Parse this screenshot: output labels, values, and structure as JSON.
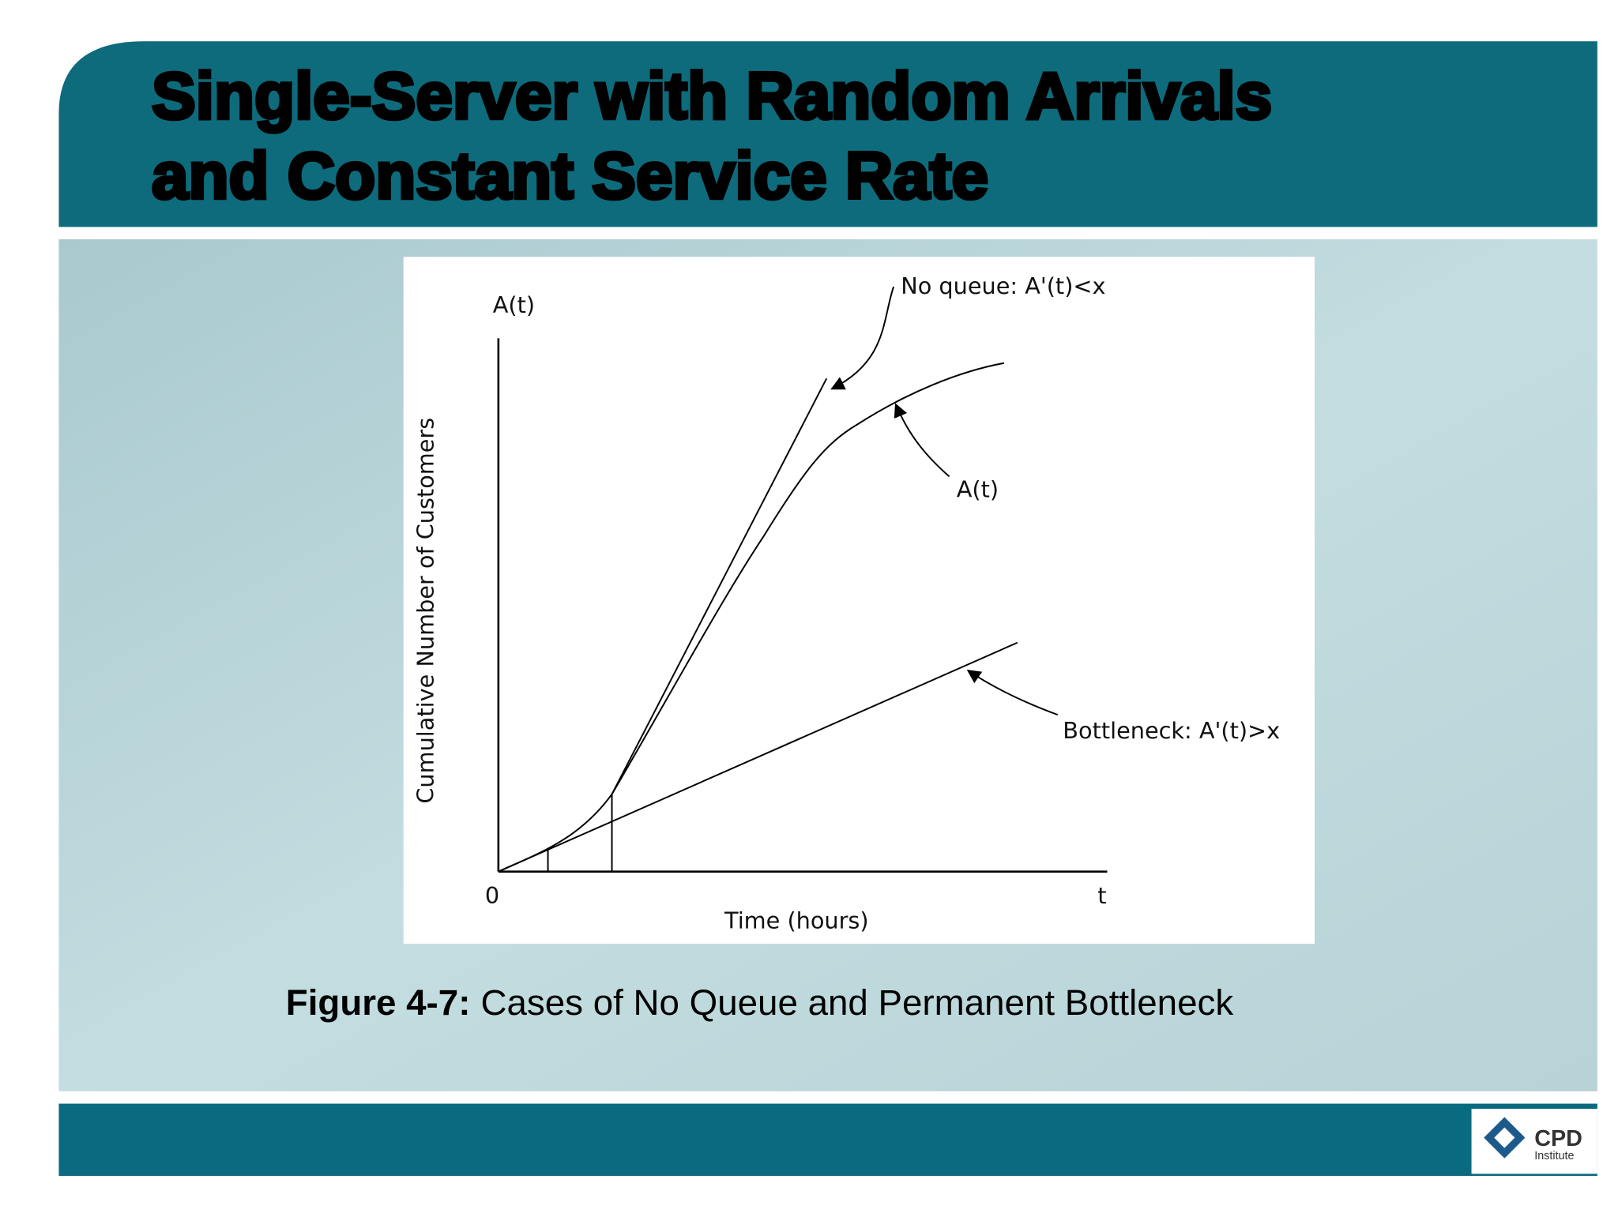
{
  "header": {
    "title_lines": [
      "Single-Server with Random Arrivals",
      "and Constant Service Rate"
    ]
  },
  "figure": {
    "y_axis_top_label": "A(t)",
    "y_axis_title": "Cumulative Number of Customers",
    "x_axis_title": "Time (hours)",
    "origin_label": "0",
    "x_axis_end_label": "t",
    "annotations": [
      "No queue: A'(t)<x",
      "A(t)",
      "Bottleneck: A'(t)>x"
    ]
  },
  "caption": {
    "label": "Figure 4-7:",
    "text": "Cases of No Queue and Permanent Bottleneck"
  },
  "logo": {
    "name": "CPD",
    "subtitle": "Institute"
  }
}
